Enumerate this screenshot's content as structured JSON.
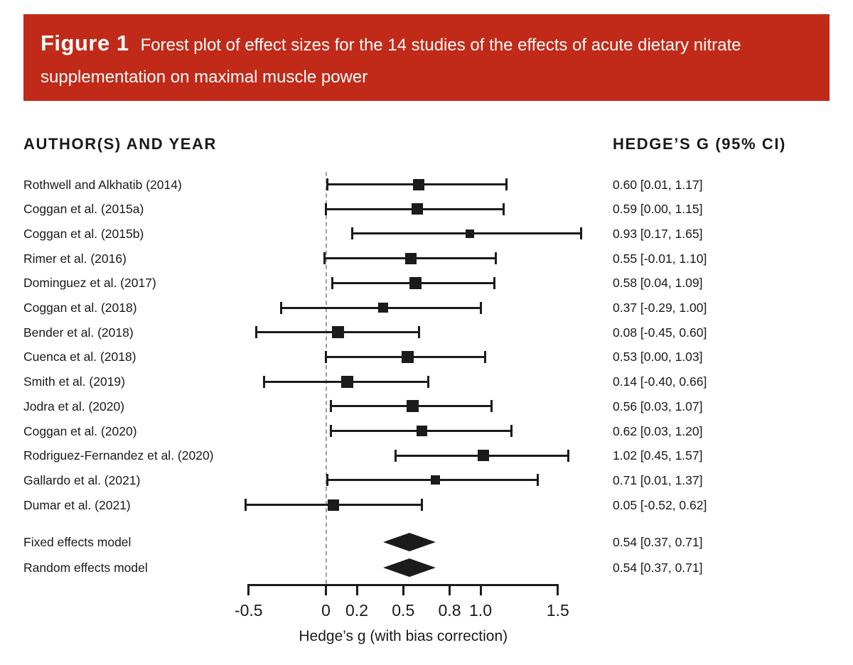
{
  "figure_header": {
    "label": "Figure 1",
    "description": "Forest plot of effect sizes for the 14 studies of the effects of acute dietary nitrate supplementation on maximal muscle power",
    "description_line1": "Forest plot of effect sizes for the 14 studies of the effects of acute dietary nitrate",
    "description_line2": "supplementation on maximal muscle power",
    "background_color": "#c12a18",
    "text_color": "#ffffff"
  },
  "columns": {
    "left_header": "AUTHOR(S) AND YEAR",
    "right_header": "HEDGE’S G (95% CI)"
  },
  "chart_data": {
    "type": "forest",
    "xlabel": "Hedge’s g (with bias correction)",
    "xlim": [
      -0.5,
      1.5
    ],
    "x_ticks": [
      -0.5,
      0,
      0.2,
      0.5,
      0.8,
      1.0,
      1.5
    ],
    "x_tick_labels": [
      "-0.5",
      "0",
      "0.2",
      "0.5",
      "0.8",
      "1.0",
      "1.5"
    ],
    "zero_reference_line": 0,
    "grid": false,
    "studies": [
      {
        "label": "Rothwell and Alkhatib (2014)",
        "g": 0.6,
        "ci_low": 0.01,
        "ci_high": 1.17,
        "value_text": "0.60 [0.01, 1.17]"
      },
      {
        "label": "Coggan et al. (2015a)",
        "g": 0.59,
        "ci_low": 0.0,
        "ci_high": 1.15,
        "value_text": "0.59 [0.00, 1.15]"
      },
      {
        "label": "Coggan et al. (2015b)",
        "g": 0.93,
        "ci_low": 0.17,
        "ci_high": 1.65,
        "value_text": "0.93 [0.17, 1.65]"
      },
      {
        "label": "Rimer et al. (2016)",
        "g": 0.55,
        "ci_low": -0.01,
        "ci_high": 1.1,
        "value_text": "0.55 [-0.01, 1.10]"
      },
      {
        "label": "Dominguez et al. (2017)",
        "g": 0.58,
        "ci_low": 0.04,
        "ci_high": 1.09,
        "value_text": "0.58 [0.04, 1.09]"
      },
      {
        "label": "Coggan et al. (2018)",
        "g": 0.37,
        "ci_low": -0.29,
        "ci_high": 1.0,
        "value_text": "0.37 [-0.29, 1.00]"
      },
      {
        "label": "Bender et al. (2018)",
        "g": 0.08,
        "ci_low": -0.45,
        "ci_high": 0.6,
        "value_text": "0.08 [-0.45, 0.60]"
      },
      {
        "label": "Cuenca et al. (2018)",
        "g": 0.53,
        "ci_low": 0.0,
        "ci_high": 1.03,
        "value_text": "0.53 [0.00, 1.03]"
      },
      {
        "label": "Smith et al. (2019)",
        "g": 0.14,
        "ci_low": -0.4,
        "ci_high": 0.66,
        "value_text": "0.14 [-0.40, 0.66]"
      },
      {
        "label": "Jodra et al. (2020)",
        "g": 0.56,
        "ci_low": 0.03,
        "ci_high": 1.07,
        "value_text": "0.56 [0.03, 1.07]"
      },
      {
        "label": "Coggan et al. (2020)",
        "g": 0.62,
        "ci_low": 0.03,
        "ci_high": 1.2,
        "value_text": "0.62 [0.03, 1.20]"
      },
      {
        "label": "Rodriguez-Fernandez et al. (2020)",
        "g": 1.02,
        "ci_low": 0.45,
        "ci_high": 1.57,
        "value_text": "1.02 [0.45, 1.57]"
      },
      {
        "label": "Gallardo et al. (2021)",
        "g": 0.71,
        "ci_low": 0.01,
        "ci_high": 1.37,
        "value_text": "0.71 [0.01, 1.37]"
      },
      {
        "label": "Dumar et al. (2021)",
        "g": 0.05,
        "ci_low": -0.52,
        "ci_high": 0.62,
        "value_text": "0.05 [-0.52, 0.62]"
      }
    ],
    "models": [
      {
        "label": "Fixed effects model",
        "g": 0.54,
        "ci_low": 0.37,
        "ci_high": 0.71,
        "value_text": "0.54 [0.37, 0.71]"
      },
      {
        "label": "Random effects model",
        "g": 0.54,
        "ci_low": 0.37,
        "ci_high": 0.71,
        "value_text": "0.54 [0.37, 0.71]"
      }
    ]
  },
  "colors": {
    "accent_red": "#c12a18",
    "ink": "#1b1b1b",
    "dashed_reference": "#9d9d9d"
  }
}
